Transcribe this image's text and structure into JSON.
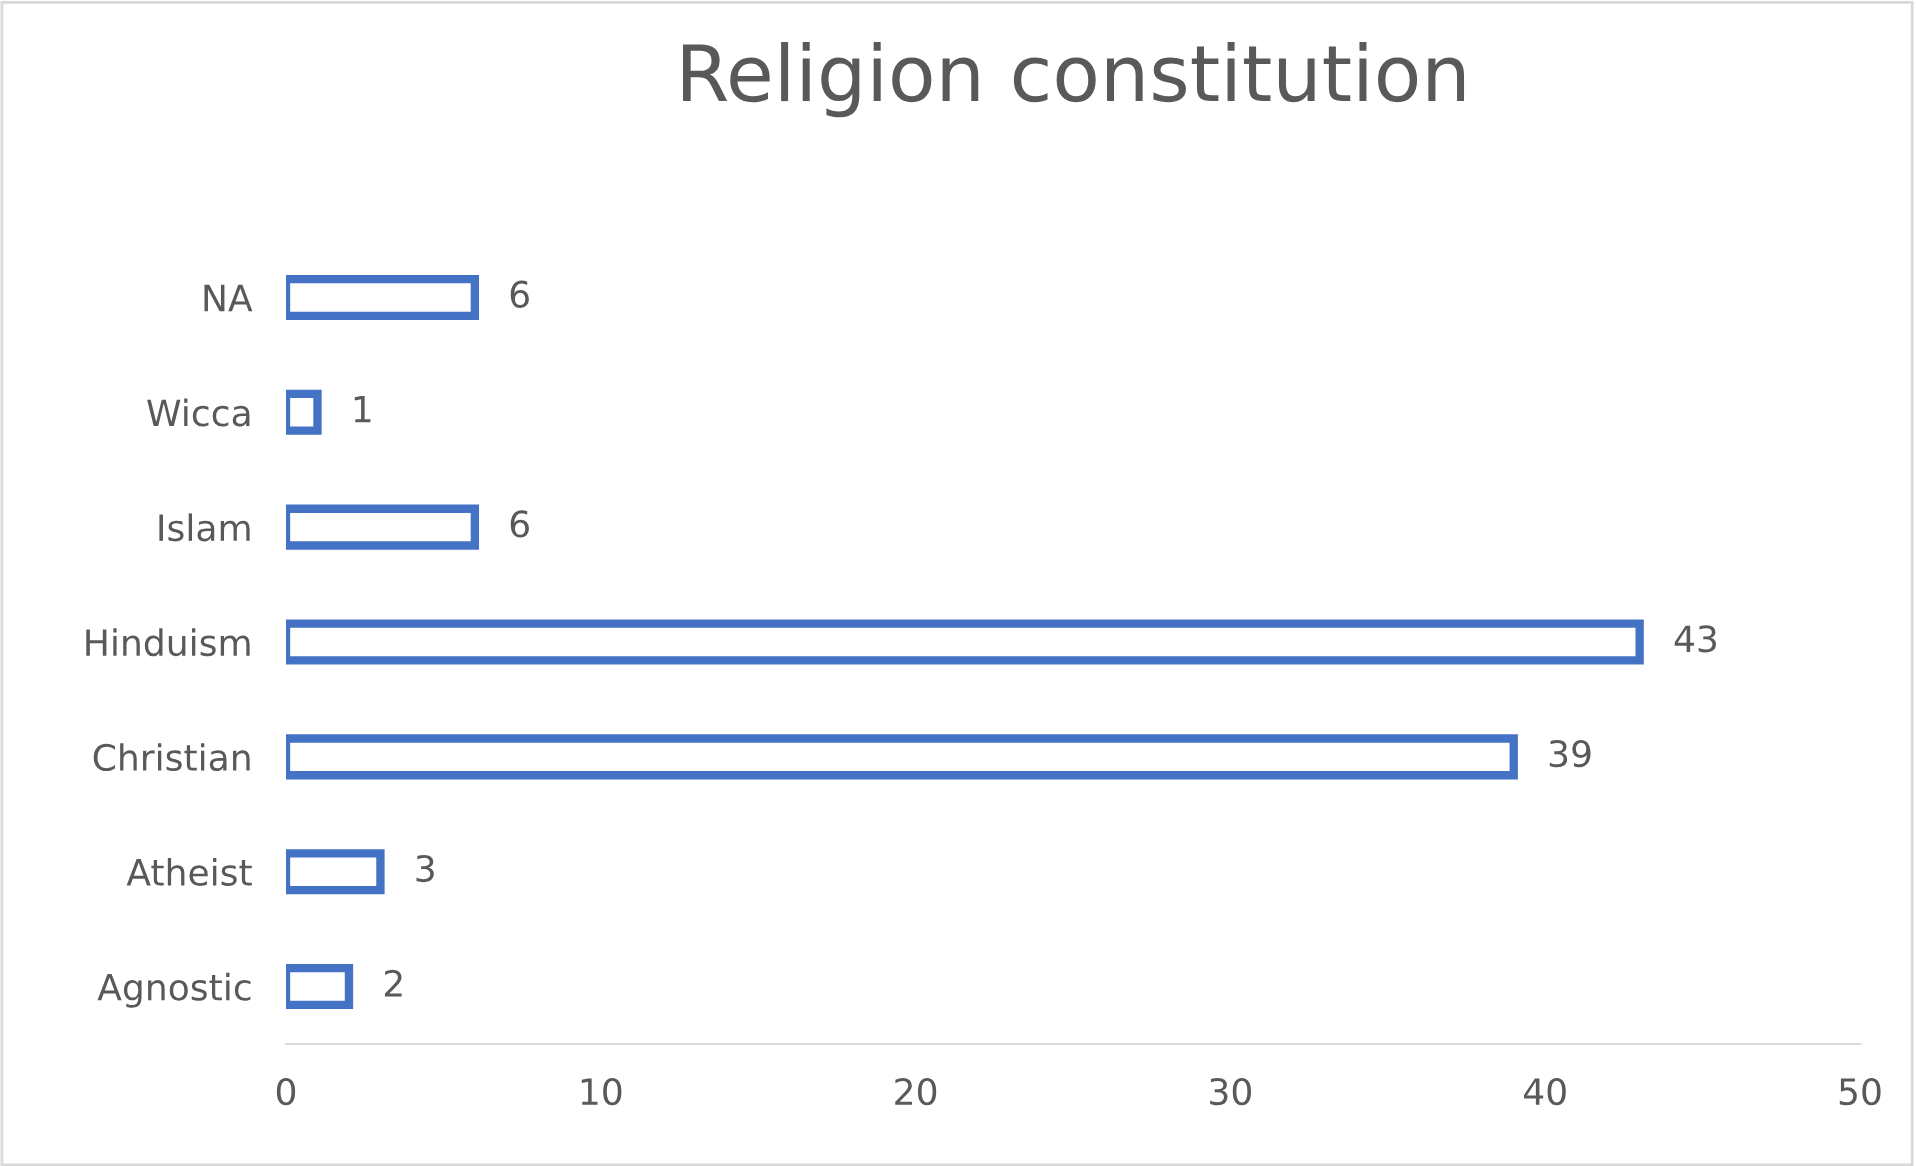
{
  "chart_data": {
    "type": "bar",
    "orientation": "horizontal",
    "title": "Religion constitution",
    "categories": [
      "NA",
      "Wicca",
      "Islam",
      "Hinduism",
      "Christian",
      "Atheist",
      "Agnostic"
    ],
    "values": [
      6,
      1,
      6,
      43,
      39,
      3,
      2
    ],
    "color": "#4472c4",
    "xlim": [
      0,
      50
    ],
    "xticks": [
      0,
      10,
      20,
      30,
      40,
      50
    ],
    "data_labels": true,
    "grid": false,
    "legend": false
  }
}
